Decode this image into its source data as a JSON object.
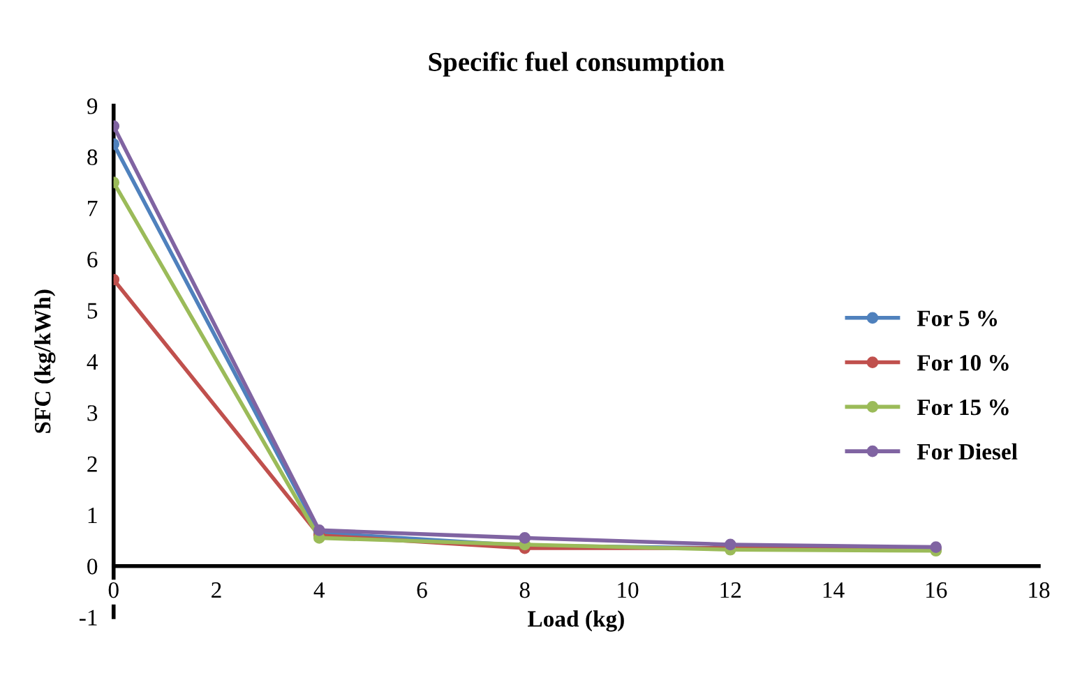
{
  "chart_data": {
    "type": "line",
    "title": "Specific fuel consumption",
    "xlabel": "Load (kg)",
    "ylabel": "SFC (kg/kWh)",
    "x": [
      0,
      4,
      8,
      12,
      16
    ],
    "series": [
      {
        "name": "For 5 %",
        "color": "#4f81bd",
        "values": [
          8.25,
          0.65,
          0.4,
          0.35,
          0.32
        ]
      },
      {
        "name": "For 10 %",
        "color": "#c0504d",
        "values": [
          5.6,
          0.6,
          0.35,
          0.35,
          0.32
        ]
      },
      {
        "name": "For 15 %",
        "color": "#9bbb59",
        "values": [
          7.5,
          0.55,
          0.42,
          0.32,
          0.3
        ]
      },
      {
        "name": "For Diesel",
        "color": "#8064a2",
        "values": [
          8.6,
          0.7,
          0.55,
          0.42,
          0.37
        ]
      }
    ],
    "xlim": [
      0,
      18
    ],
    "xticks": [
      0,
      2,
      4,
      6,
      8,
      10,
      12,
      14,
      16,
      18
    ],
    "ylim": [
      -1,
      9
    ],
    "yticks": [
      -1,
      0,
      1,
      2,
      3,
      4,
      5,
      6,
      7,
      8,
      9
    ],
    "grid": false,
    "legend": "right",
    "marker": "circle",
    "line_style": "solid"
  }
}
